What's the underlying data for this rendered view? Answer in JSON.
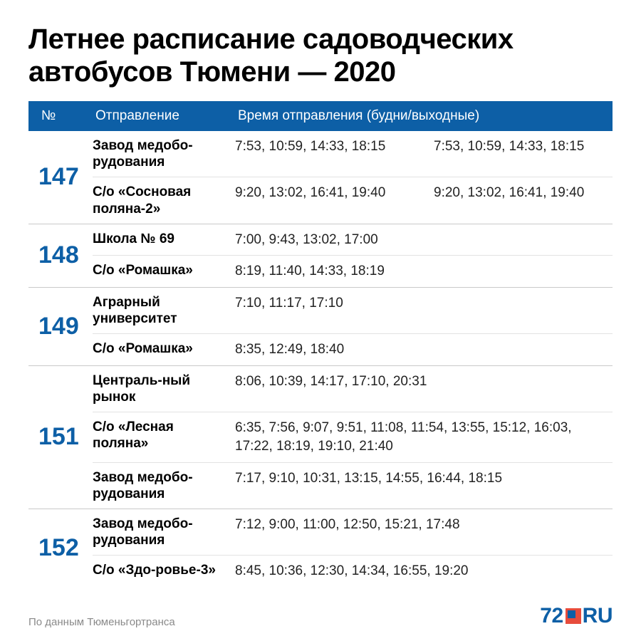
{
  "colors": {
    "header_bg": "#0d5fa6",
    "header_text": "#ffffff",
    "route_number": "#0d5fa6",
    "row_divider": "#e3e3e3",
    "block_divider": "#c9c9c9",
    "body_text": "#000000",
    "source_text": "#8a8a8a",
    "logo_blue": "#0d5fa6",
    "logo_red": "#e74c3c"
  },
  "title": "Летнее расписание садоводческих автобусов Тюмени — 2020",
  "header": {
    "num": "№",
    "departure": "Отправление",
    "times": "Время отправления (будни/выходные)"
  },
  "routes": [
    {
      "number": "147",
      "rows": [
        {
          "departure": "Завод медобо-рудования",
          "weekday": "7:53, 10:59, 14:33, 18:15",
          "weekend": "7:53, 10:59, 14:33, 18:15"
        },
        {
          "departure": "С/о «Сосновая поляна-2»",
          "weekday": "9:20, 13:02, 16:41, 19:40",
          "weekend": "9:20, 13:02, 16:41, 19:40"
        }
      ]
    },
    {
      "number": "148",
      "rows": [
        {
          "departure": "Школа № 69",
          "single": "7:00, 9:43, 13:02, 17:00"
        },
        {
          "departure": "С/о «Ромашка»",
          "single": "8:19, 11:40, 14:33, 18:19"
        }
      ]
    },
    {
      "number": "149",
      "rows": [
        {
          "departure": "Аграрный университет",
          "single": "7:10, 11:17, 17:10"
        },
        {
          "departure": "С/о «Ромашка»",
          "single": "8:35, 12:49, 18:40"
        }
      ]
    },
    {
      "number": "151",
      "rows": [
        {
          "departure": "Централь-ный рынок",
          "single": "8:06, 10:39, 14:17, 17:10, 20:31"
        },
        {
          "departure": "С/о «Лесная поляна»",
          "single": "6:35, 7:56, 9:07, 9:51, 11:08, 11:54, 13:55, 15:12, 16:03, 17:22, 18:19, 19:10, 21:40"
        },
        {
          "departure": "Завод медобо-рудования",
          "single": "7:17, 9:10, 10:31, 13:15, 14:55, 16:44, 18:15"
        }
      ]
    },
    {
      "number": "152",
      "rows": [
        {
          "departure": "Завод медобо-рудования",
          "single": "7:12, 9:00, 11:00, 12:50, 15:21, 17:48"
        },
        {
          "departure": "С/о «Здо-ровье-3»",
          "single": "8:45, 10:36, 12:30, 14:34, 16:55, 19:20"
        }
      ]
    }
  ],
  "source": "По данным Тюменьгортранса",
  "logo": {
    "prefix": "72",
    "suffix": "RU"
  }
}
